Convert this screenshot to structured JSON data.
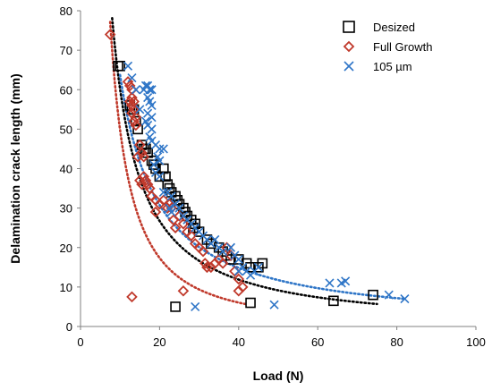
{
  "chart_data": {
    "type": "scatter",
    "xlabel": "Load (N)",
    "ylabel": "Delamination crack length (mm)",
    "xlim": [
      0,
      100
    ],
    "ylim": [
      0,
      80
    ],
    "xticks": [
      0,
      20,
      40,
      60,
      80,
      100
    ],
    "yticks": [
      0,
      10,
      20,
      30,
      40,
      50,
      60,
      70,
      80
    ],
    "grid": false,
    "legend_position": "top-right",
    "series": [
      {
        "name": "Desized",
        "marker": "square",
        "color": "#000000",
        "points": [
          [
            9.5,
            66
          ],
          [
            10,
            66
          ],
          [
            12.5,
            56
          ],
          [
            13,
            55
          ],
          [
            13.5,
            55
          ],
          [
            14,
            52
          ],
          [
            14.5,
            50
          ],
          [
            15.5,
            46
          ],
          [
            16,
            45
          ],
          [
            16.5,
            45
          ],
          [
            17,
            44
          ],
          [
            18,
            42
          ],
          [
            18.5,
            41
          ],
          [
            19,
            40
          ],
          [
            20,
            38
          ],
          [
            21,
            40
          ],
          [
            21.5,
            38
          ],
          [
            22,
            36
          ],
          [
            22.5,
            35
          ],
          [
            23,
            34
          ],
          [
            24,
            33
          ],
          [
            24.5,
            32
          ],
          [
            25,
            31
          ],
          [
            26,
            30
          ],
          [
            26.5,
            29
          ],
          [
            27,
            28
          ],
          [
            28,
            27
          ],
          [
            28.5,
            25
          ],
          [
            29,
            26
          ],
          [
            30,
            24
          ],
          [
            32,
            22
          ],
          [
            33,
            21
          ],
          [
            35,
            20
          ],
          [
            36,
            19
          ],
          [
            37,
            18
          ],
          [
            38,
            17
          ],
          [
            40,
            17
          ],
          [
            42,
            16
          ],
          [
            43,
            15
          ],
          [
            45,
            15
          ],
          [
            46,
            16
          ],
          [
            24,
            5
          ],
          [
            43,
            6
          ],
          [
            64,
            6.5
          ],
          [
            74,
            8
          ]
        ]
      },
      {
        "name": "Full Growth",
        "marker": "diamond",
        "color": "#c0392b",
        "points": [
          [
            7.5,
            74
          ],
          [
            12,
            62
          ],
          [
            12.5,
            61
          ],
          [
            13,
            60
          ],
          [
            13,
            58
          ],
          [
            13.5,
            57
          ],
          [
            12.5,
            57
          ],
          [
            13,
            56
          ],
          [
            13.5,
            55
          ],
          [
            13,
            54
          ],
          [
            14,
            53
          ],
          [
            13.5,
            52
          ],
          [
            14,
            51
          ],
          [
            15,
            46
          ],
          [
            15.5,
            44
          ],
          [
            14.5,
            43
          ],
          [
            16,
            43
          ],
          [
            15,
            37
          ],
          [
            15.5,
            36
          ],
          [
            16,
            38
          ],
          [
            16.5,
            37
          ],
          [
            17,
            36
          ],
          [
            17.5,
            35
          ],
          [
            18,
            33
          ],
          [
            19,
            32
          ],
          [
            19,
            29
          ],
          [
            20,
            31
          ],
          [
            21,
            32
          ],
          [
            22,
            30
          ],
          [
            22.5,
            31
          ],
          [
            23,
            30
          ],
          [
            23.5,
            27
          ],
          [
            24,
            25
          ],
          [
            25,
            28
          ],
          [
            26,
            26
          ],
          [
            27,
            24
          ],
          [
            28,
            23
          ],
          [
            29,
            21
          ],
          [
            30,
            20
          ],
          [
            31,
            19
          ],
          [
            31.5,
            16
          ],
          [
            32,
            15
          ],
          [
            33,
            15
          ],
          [
            34,
            16
          ],
          [
            35,
            17
          ],
          [
            36,
            16
          ],
          [
            37,
            20
          ],
          [
            38,
            18
          ],
          [
            39,
            14
          ],
          [
            40,
            12
          ],
          [
            41,
            10
          ],
          [
            40,
            9
          ],
          [
            13,
            7.5
          ],
          [
            26,
            9
          ]
        ]
      },
      {
        "name": "105 µm",
        "marker": "x",
        "color": "#2e75c7",
        "points": [
          [
            12,
            66
          ],
          [
            13,
            63
          ],
          [
            14,
            60
          ],
          [
            15,
            55
          ],
          [
            16,
            60
          ],
          [
            16.5,
            61
          ],
          [
            17,
            61
          ],
          [
            17.5,
            60
          ],
          [
            18,
            60
          ],
          [
            17,
            58
          ],
          [
            17.5,
            57
          ],
          [
            18,
            56
          ],
          [
            17,
            54
          ],
          [
            18,
            53
          ],
          [
            16.5,
            52
          ],
          [
            17,
            51
          ],
          [
            18,
            50
          ],
          [
            17.5,
            48
          ],
          [
            18,
            47
          ],
          [
            19,
            46
          ],
          [
            20,
            45
          ],
          [
            21,
            45
          ],
          [
            19.5,
            43
          ],
          [
            20,
            42
          ],
          [
            18.5,
            41
          ],
          [
            19,
            39
          ],
          [
            20,
            38
          ],
          [
            21,
            34
          ],
          [
            22,
            34
          ],
          [
            23,
            33
          ],
          [
            24,
            31
          ],
          [
            22.5,
            30
          ],
          [
            23,
            29
          ],
          [
            25,
            30
          ],
          [
            26,
            28
          ],
          [
            27,
            27
          ],
          [
            28,
            26
          ],
          [
            29,
            25
          ],
          [
            30,
            24
          ],
          [
            31,
            23
          ],
          [
            32,
            22
          ],
          [
            33,
            21
          ],
          [
            34,
            22
          ],
          [
            35,
            20
          ],
          [
            36,
            19
          ],
          [
            38,
            20
          ],
          [
            39,
            18
          ],
          [
            40,
            17
          ],
          [
            41,
            15
          ],
          [
            42,
            14
          ],
          [
            43,
            13
          ],
          [
            44,
            14
          ],
          [
            45,
            15
          ],
          [
            40,
            14
          ],
          [
            29,
            5
          ],
          [
            49,
            5.5
          ],
          [
            63,
            11
          ],
          [
            66,
            11
          ],
          [
            67,
            11.5
          ],
          [
            78,
            8
          ],
          [
            82,
            7
          ]
        ]
      }
    ],
    "fits": [
      {
        "series": "Desized",
        "style": "dotted",
        "color": "#000000",
        "x_range": [
          8,
          75
        ],
        "a": 890,
        "b": 1.17
      },
      {
        "series": "Full Growth",
        "style": "dotted",
        "color": "#c0392b",
        "x_range": [
          7.5,
          42
        ],
        "a": 1650,
        "b": 1.52
      },
      {
        "series": "105 µm",
        "style": "dotted",
        "color": "#2e75c7",
        "x_range": [
          10,
          82
        ],
        "a": 715,
        "b": 1.05
      }
    ]
  }
}
